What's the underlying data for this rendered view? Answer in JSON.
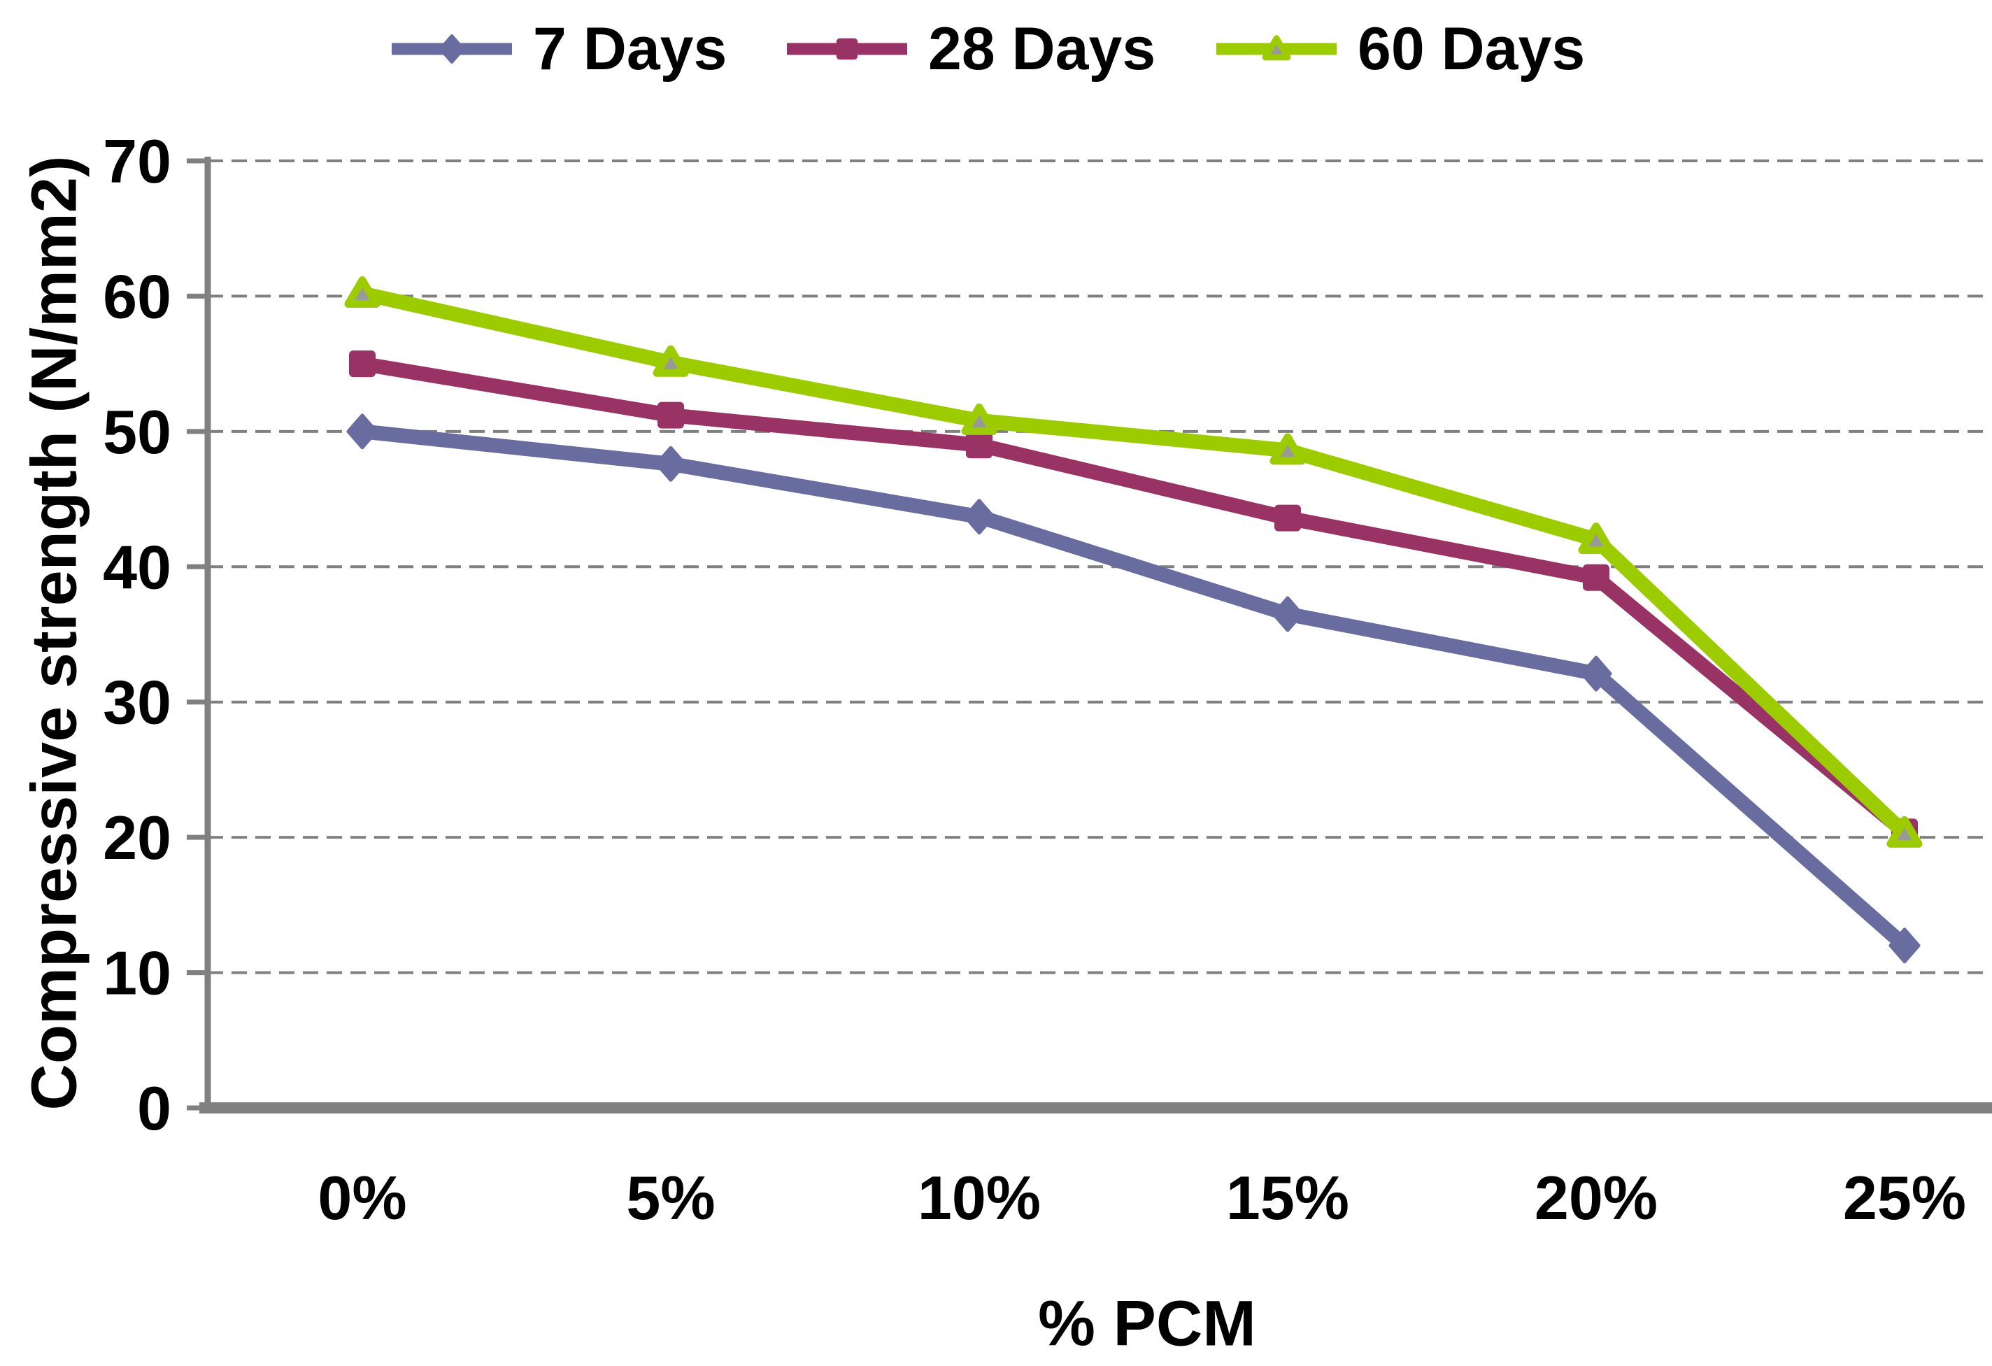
{
  "chart_data": {
    "type": "line",
    "title": "",
    "xlabel": "% PCM",
    "ylabel": "Compressive strength (N/mm2)",
    "categories": [
      "0%",
      "5%",
      "10%",
      "15%",
      "20%",
      "25%"
    ],
    "y_ticks": [
      0,
      10,
      20,
      30,
      40,
      50,
      60,
      70
    ],
    "ylim": [
      0,
      70
    ],
    "grid": "horizontal-dashed",
    "legend_position": "top",
    "series": [
      {
        "name": "7 Days",
        "color": "#686C9F",
        "marker": "diamond",
        "values": [
          50,
          47.6,
          43.7,
          36.5,
          32.1,
          12
        ]
      },
      {
        "name": "28 Days",
        "color": "#993366",
        "marker": "square",
        "values": [
          55,
          51.2,
          49,
          43.6,
          39.2,
          20.4
        ]
      },
      {
        "name": "60 Days",
        "color": "#9CCB00",
        "marker": "triangle",
        "marker_fill": "#999999",
        "values": [
          60.2,
          55.1,
          50.8,
          48.6,
          42,
          20.3
        ]
      }
    ],
    "axis_color": "#808080",
    "gridline_color": "#808080",
    "text_color": "#000000"
  }
}
